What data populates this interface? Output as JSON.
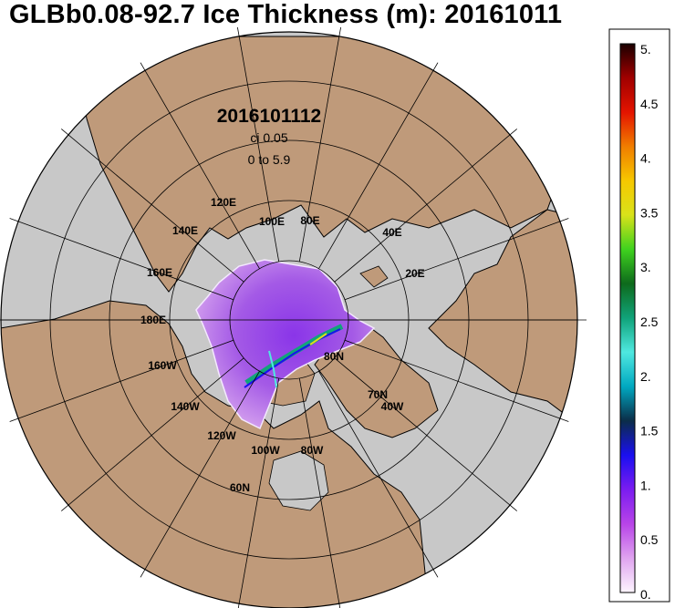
{
  "title": "GLBb0.08-92.7 Ice Thickness (m): 20161011",
  "annotations": {
    "run_date": "20161011​12",
    "contour_interval": "ci 0.05",
    "range": "0 to 5.9"
  },
  "longitude_labels": [
    "120E",
    "100E",
    "80E",
    "140E",
    "40E",
    "160E",
    "20E",
    "180E",
    "160W",
    "140W",
    "120W",
    "100W",
    "80W",
    "40W"
  ],
  "latitude_labels": [
    "80N",
    "70N",
    "60N"
  ],
  "colorbar": {
    "ticks": [
      "5.",
      "4.5",
      "4.",
      "3.5",
      "3.",
      "2.5",
      "2.",
      "1.5",
      "1.",
      "0.5",
      "0."
    ],
    "min": 0,
    "max": 5,
    "colors": [
      "#fdf5ff",
      "#dfa3ef",
      "#b844e8",
      "#7a1cf0",
      "#1a0ff0",
      "#0b2d48",
      "#00a8c0",
      "#4fe8e0",
      "#10a37a",
      "#0e6a1c",
      "#3fd21e",
      "#d9e21a",
      "#f6c800",
      "#f07d00",
      "#e41400",
      "#a00000",
      "#1a0000"
    ]
  },
  "colors": {
    "land": "#bf9a7a",
    "ocean": "#c8c8c8",
    "ice_thin": "#d9a6ee",
    "ice_mid": "#a457e6",
    "grid": "#000000"
  }
}
